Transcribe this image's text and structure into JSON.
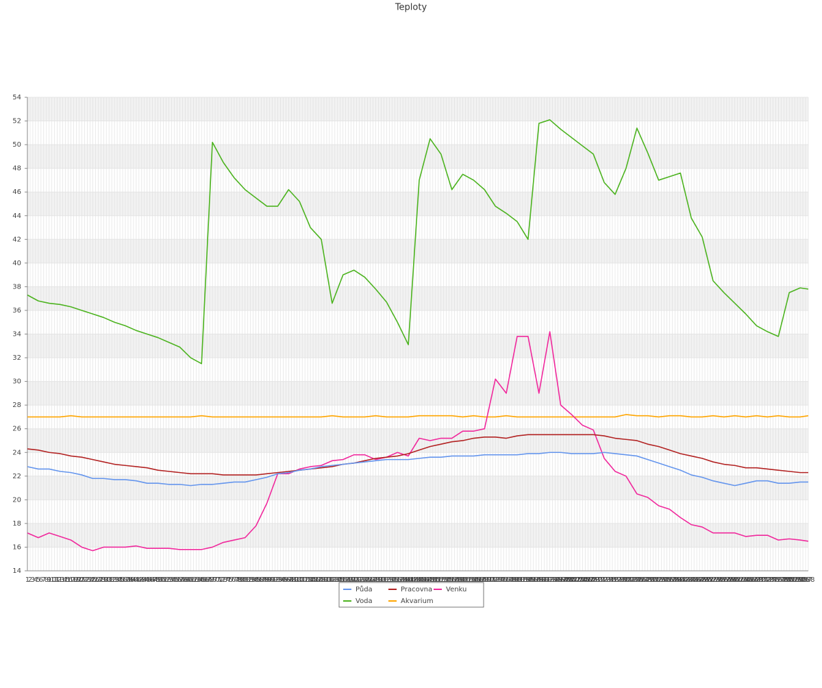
{
  "chart_data": {
    "type": "line",
    "title": "Teploty",
    "x": [
      1,
      5,
      9,
      13,
      17,
      21,
      25,
      29,
      33,
      37,
      41,
      45,
      49,
      53,
      57,
      61,
      65,
      69,
      73,
      77,
      81,
      85,
      89,
      93,
      97,
      101,
      105,
      109,
      113,
      117,
      121,
      125,
      129,
      133,
      137,
      141,
      145,
      149,
      153,
      157,
      161,
      165,
      169,
      173,
      177,
      181,
      185,
      189,
      193,
      197,
      201,
      205,
      209,
      213,
      217,
      221,
      225,
      229,
      233,
      237,
      241,
      245,
      249,
      253,
      257,
      261,
      265,
      269,
      273,
      277,
      281,
      285,
      288
    ],
    "series": [
      {
        "name": "Půda",
        "color": "#6495ed",
        "values": [
          22.8,
          22.6,
          22.6,
          22.4,
          22.3,
          22.1,
          21.8,
          21.8,
          21.7,
          21.7,
          21.6,
          21.4,
          21.4,
          21.3,
          21.3,
          21.2,
          21.3,
          21.3,
          21.4,
          21.5,
          21.5,
          21.7,
          21.9,
          22.2,
          22.3,
          22.5,
          22.6,
          22.8,
          22.9,
          23.0,
          23.1,
          23.2,
          23.3,
          23.4,
          23.4,
          23.4,
          23.5,
          23.6,
          23.6,
          23.7,
          23.7,
          23.7,
          23.8,
          23.8,
          23.8,
          23.8,
          23.9,
          23.9,
          24.0,
          24.0,
          23.9,
          23.9,
          23.9,
          24.0,
          23.9,
          23.8,
          23.7,
          23.4,
          23.1,
          22.8,
          22.5,
          22.1,
          21.9,
          21.6,
          21.4,
          21.2,
          21.4,
          21.6,
          21.6,
          21.4,
          21.4,
          21.5,
          21.5
        ]
      },
      {
        "name": "Pracovna",
        "color": "#b22222",
        "values": [
          24.3,
          24.2,
          24.0,
          23.9,
          23.7,
          23.6,
          23.4,
          23.2,
          23.0,
          22.9,
          22.8,
          22.7,
          22.5,
          22.4,
          22.3,
          22.2,
          22.2,
          22.2,
          22.1,
          22.1,
          22.1,
          22.1,
          22.2,
          22.3,
          22.4,
          22.5,
          22.6,
          22.7,
          22.8,
          23.0,
          23.1,
          23.3,
          23.5,
          23.6,
          23.7,
          23.9,
          24.2,
          24.5,
          24.7,
          24.9,
          25.0,
          25.2,
          25.3,
          25.3,
          25.2,
          25.4,
          25.5,
          25.5,
          25.5,
          25.5,
          25.5,
          25.5,
          25.5,
          25.4,
          25.2,
          25.1,
          25.0,
          24.7,
          24.5,
          24.2,
          23.9,
          23.7,
          23.5,
          23.2,
          23.0,
          22.9,
          22.7,
          22.7,
          22.6,
          22.5,
          22.4,
          22.3,
          22.3
        ]
      },
      {
        "name": "Venku",
        "color": "#f0289c",
        "values": [
          17.2,
          16.8,
          17.2,
          16.9,
          16.6,
          16.0,
          15.7,
          16.0,
          16.0,
          16.0,
          16.1,
          15.9,
          15.9,
          15.9,
          15.8,
          15.8,
          15.8,
          16.0,
          16.4,
          16.6,
          16.8,
          17.8,
          19.7,
          22.2,
          22.2,
          22.6,
          22.8,
          22.9,
          23.3,
          23.4,
          23.8,
          23.8,
          23.4,
          23.6,
          24.0,
          23.7,
          25.2,
          25.0,
          25.2,
          25.2,
          25.8,
          25.8,
          26.0,
          30.2,
          29.0,
          33.8,
          33.8,
          29.0,
          34.2,
          28.0,
          27.2,
          26.3,
          25.9,
          23.5,
          22.4,
          22.0,
          20.5,
          20.2,
          19.5,
          19.2,
          18.5,
          17.9,
          17.7,
          17.2,
          17.2,
          17.2,
          16.9,
          17.0,
          17.0,
          16.6,
          16.7,
          16.6,
          16.5
        ]
      },
      {
        "name": "Voda",
        "color": "#4cb31f",
        "values": [
          37.3,
          36.8,
          36.6,
          36.5,
          36.3,
          36.0,
          35.7,
          35.4,
          35.0,
          34.7,
          34.3,
          34.0,
          33.7,
          33.3,
          32.9,
          32.0,
          31.5,
          50.2,
          48.5,
          47.2,
          46.2,
          45.5,
          44.8,
          44.8,
          46.2,
          45.2,
          43.0,
          42.0,
          36.6,
          39.0,
          39.4,
          38.8,
          37.8,
          36.7,
          35.0,
          33.1,
          47.0,
          50.5,
          49.2,
          46.2,
          47.5,
          47.0,
          46.2,
          44.8,
          44.2,
          43.5,
          42.0,
          51.8,
          52.1,
          51.3,
          50.6,
          49.9,
          49.2,
          46.8,
          45.8,
          48.0,
          51.4,
          49.3,
          47.0,
          47.3,
          47.6,
          43.8,
          42.2,
          38.5,
          37.5,
          36.6,
          35.7,
          34.7,
          34.2,
          33.8,
          37.5,
          37.9,
          37.8
        ]
      },
      {
        "name": "Akvarium",
        "color": "#ffa500",
        "values": [
          27.0,
          27.0,
          27.0,
          27.0,
          27.1,
          27.0,
          27.0,
          27.0,
          27.0,
          27.0,
          27.0,
          27.0,
          27.0,
          27.0,
          27.0,
          27.0,
          27.1,
          27.0,
          27.0,
          27.0,
          27.0,
          27.0,
          27.0,
          27.0,
          27.0,
          27.0,
          27.0,
          27.0,
          27.1,
          27.0,
          27.0,
          27.0,
          27.1,
          27.0,
          27.0,
          27.0,
          27.1,
          27.1,
          27.1,
          27.1,
          27.0,
          27.1,
          27.0,
          27.0,
          27.1,
          27.0,
          27.0,
          27.0,
          27.0,
          27.0,
          27.0,
          27.0,
          27.0,
          27.0,
          27.0,
          27.2,
          27.1,
          27.1,
          27.0,
          27.1,
          27.1,
          27.0,
          27.0,
          27.1,
          27.0,
          27.1,
          27.0,
          27.1,
          27.0,
          27.1,
          27.0,
          27.0,
          27.1
        ]
      }
    ],
    "xlim": [
      1,
      288
    ],
    "xticks": [
      1,
      2,
      3,
      4,
      5,
      6,
      7,
      8,
      9,
      10,
      11,
      12,
      13,
      14,
      15,
      16,
      17,
      18,
      19,
      20,
      21,
      22,
      23,
      24,
      25,
      26,
      27,
      28,
      29,
      30,
      31,
      32,
      33,
      34,
      35,
      36,
      37,
      38,
      39,
      40,
      41,
      42,
      43,
      44,
      45,
      46,
      47,
      48,
      49,
      50,
      51,
      52,
      53,
      54,
      55,
      56,
      57,
      58,
      59,
      60,
      61,
      62,
      63,
      64,
      65,
      66,
      67,
      68,
      69,
      70,
      71,
      72,
      73,
      74,
      75,
      76,
      77,
      78,
      79,
      80,
      81,
      82,
      83,
      84,
      85,
      86,
      87,
      88,
      89,
      90,
      91,
      92,
      93,
      94,
      95,
      96,
      97,
      98,
      99,
      100,
      101,
      102,
      103,
      104,
      105,
      106,
      107,
      108,
      109,
      110,
      111,
      112,
      113,
      114,
      115,
      116,
      117,
      118,
      119,
      120,
      121,
      122,
      123,
      124,
      125,
      126,
      127,
      128,
      129,
      130,
      131,
      132,
      133,
      134,
      135,
      136,
      137,
      138,
      139,
      140,
      141,
      142,
      143,
      144,
      145,
      146,
      147,
      148,
      149,
      150,
      151,
      152,
      153,
      154,
      155,
      156,
      157,
      158,
      159,
      160,
      161,
      162,
      163,
      164,
      165,
      166,
      167,
      168,
      169,
      170,
      171,
      172,
      173,
      174,
      175,
      176,
      177,
      178,
      179,
      180,
      181,
      182,
      183,
      184,
      185,
      186,
      187,
      188,
      189,
      190,
      191,
      192,
      193,
      194,
      195,
      196,
      197,
      198,
      199,
      200,
      201,
      202,
      203,
      204,
      205,
      206,
      207,
      208,
      209,
      210,
      211,
      212,
      213,
      214,
      215,
      216,
      217,
      218,
      219,
      220,
      221,
      222,
      223,
      224,
      225,
      226,
      227,
      228,
      229,
      230,
      231,
      232,
      233,
      234,
      235,
      236,
      237,
      238,
      239,
      240,
      241,
      242,
      243,
      244,
      245,
      246,
      247,
      248,
      249,
      250,
      251,
      252,
      253,
      254,
      255,
      256,
      257,
      258,
      259,
      260,
      261,
      262,
      263,
      264,
      265,
      266,
      267,
      268,
      269,
      270,
      271,
      272,
      273,
      274,
      275,
      276,
      277,
      278,
      279,
      280,
      281,
      282,
      283,
      284,
      285,
      286,
      287,
      288
    ],
    "ylim": [
      14,
      54
    ],
    "yticks": [
      14,
      16,
      18,
      20,
      22,
      24,
      26,
      28,
      30,
      32,
      34,
      36,
      38,
      40,
      42,
      44,
      46,
      48,
      50,
      52,
      54
    ],
    "grid": true
  }
}
